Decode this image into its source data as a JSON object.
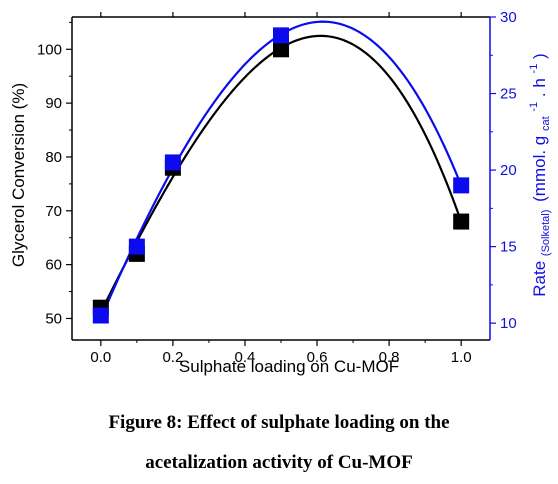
{
  "chart_data": {
    "type": "line",
    "xlabel": "Sulphate loading on Cu-MOF",
    "ylabel": "Glycerol Conversion (%)",
    "y2label": {
      "main": "Rate",
      "subscript": "(Solketal)",
      "units_start": "(mmol. g",
      "units_sub": "cat",
      "units_sup1": "-1",
      "units_mid": ". h",
      "units_sup2": "-1",
      "units_end": ")"
    },
    "xlim": [
      -0.08,
      1.08
    ],
    "ylim": [
      46,
      106
    ],
    "y2lim": [
      8.9,
      30
    ],
    "xticks": [
      "0.0",
      "0.2",
      "0.4",
      "0.6",
      "0.8",
      "1.0"
    ],
    "yticks": [
      "50",
      "60",
      "70",
      "80",
      "90",
      "100"
    ],
    "y2ticks": [
      "10",
      "15",
      "20",
      "25",
      "30"
    ],
    "x": [
      0.0,
      0.1,
      0.2,
      0.5,
      1.0
    ],
    "series": [
      {
        "axis": "left",
        "color": "#000000",
        "values": [
          52,
          62,
          78,
          100,
          68
        ]
      },
      {
        "axis": "right",
        "color": "#0b0bee",
        "values": [
          10.5,
          15.0,
          20.5,
          28.8,
          19.0
        ]
      }
    ],
    "grid": false,
    "legend": "none"
  },
  "caption": {
    "line1": "Figure 8: Effect of sulphate loading on the",
    "line2": "acetalization activity of Cu-MOF"
  }
}
